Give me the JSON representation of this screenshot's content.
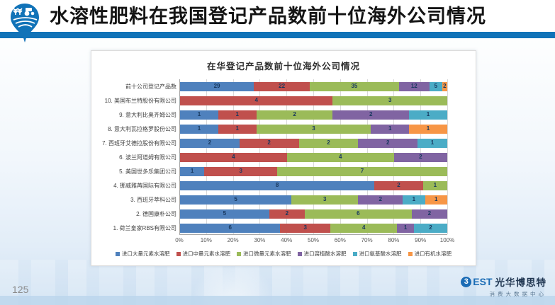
{
  "header": {
    "title": "水溶性肥料在我国登记产品数前十位海外公司情况"
  },
  "chart_data": {
    "type": "bar",
    "orientation": "horizontal",
    "stacked": true,
    "normalized_to_percent": true,
    "title": "在华登记产品数前十位海外公司情况",
    "grid": true,
    "legend_position": "bottom",
    "x_axis": {
      "range": [
        0,
        100
      ],
      "ticks": [
        "0%",
        "10%",
        "20%",
        "30%",
        "40%",
        "50%",
        "60%",
        "70%",
        "80%",
        "90%",
        "100%"
      ]
    },
    "categories": [
      "前十公司登记产品数",
      "10. 美国布兰特股份有限公司",
      "9. 意大利比奥齐姆公司",
      "8. 意大利瓦拉格罗股份公司",
      "7. 西班牙艾德拉股份有限公司",
      "6. 波兰阿道姆有限公司",
      "5. 美国世多乐集团公司",
      "4. 挪威雅苒国际有限公司",
      "3. 西班牙萃科公司",
      "2. 德国康朴公司",
      "1. 荷兰皇家RBS有限公司"
    ],
    "series": [
      {
        "name": "进口大量元素水溶肥",
        "color": "#4f81bd",
        "values": [
          29,
          0,
          1,
          1,
          2,
          0,
          1,
          8,
          5,
          5,
          6
        ]
      },
      {
        "name": "进口中量元素水溶肥",
        "color": "#c0504d",
        "values": [
          22,
          4,
          1,
          1,
          2,
          4,
          3,
          2,
          0,
          2,
          3
        ]
      },
      {
        "name": "进口微量元素水溶肥",
        "color": "#9bbb59",
        "values": [
          35,
          3,
          2,
          3,
          2,
          4,
          7,
          1,
          3,
          6,
          4
        ]
      },
      {
        "name": "进口腐植酸水溶肥",
        "color": "#8064a2",
        "values": [
          12,
          0,
          2,
          1,
          2,
          2,
          0,
          0,
          2,
          2,
          1
        ]
      },
      {
        "name": "进口氨基酸水溶肥",
        "color": "#4bacc6",
        "values": [
          5,
          0,
          1,
          0,
          1,
          0,
          0,
          0,
          1,
          0,
          2
        ]
      },
      {
        "name": "进口有机水溶肥",
        "color": "#f79646",
        "values": [
          2,
          0,
          0,
          1,
          0,
          0,
          0,
          0,
          1,
          0,
          0
        ]
      }
    ]
  },
  "footer": {
    "page_number": "125",
    "logo_circle_glyph": "3",
    "logo_rest": "EST",
    "logo_text": "光华博思特",
    "logo_subtext": "消费大数据中心"
  },
  "colors": {
    "accent_blue": "#1173b8",
    "title_text": "#141414",
    "panel_border": "#dcdcdc"
  }
}
